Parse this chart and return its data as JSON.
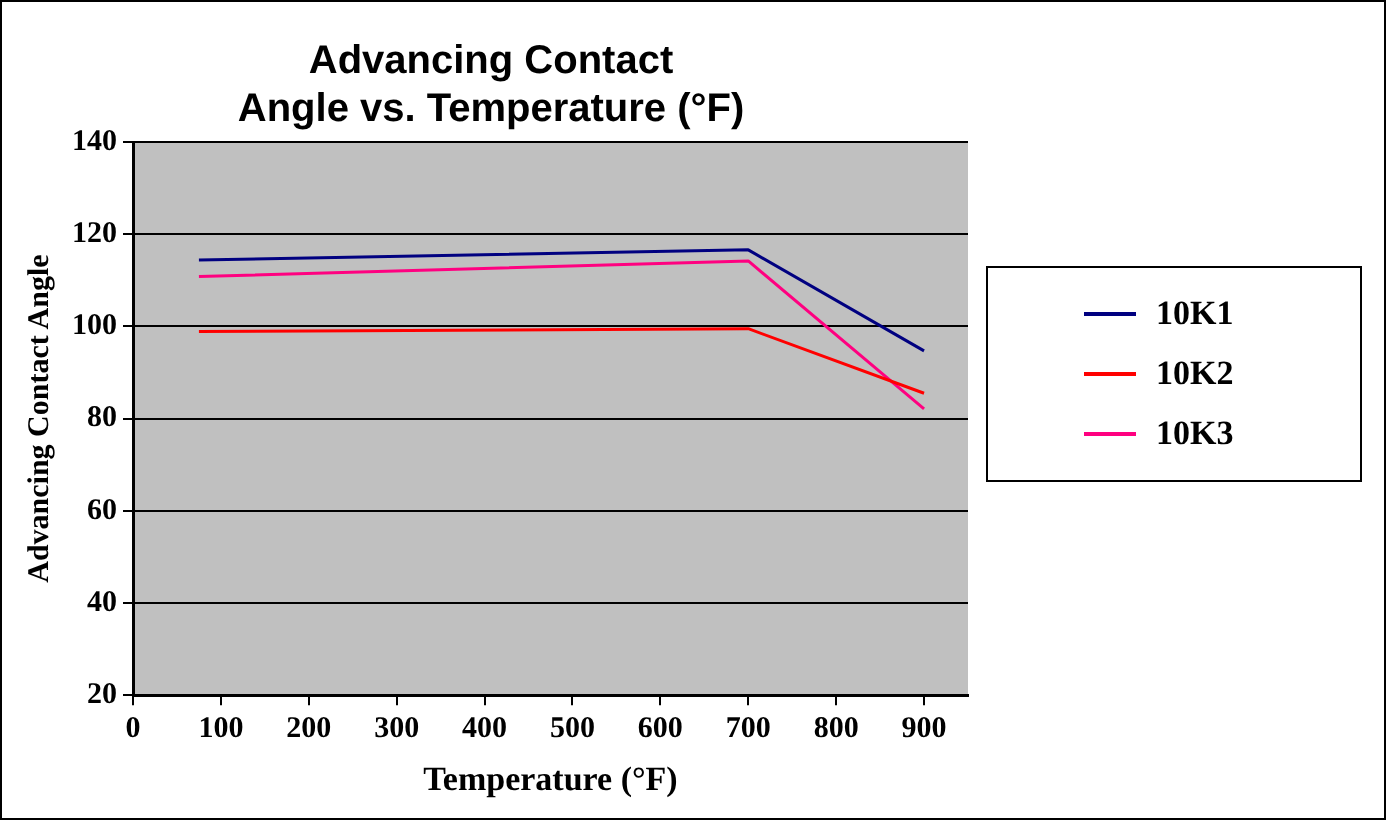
{
  "chart_data": {
    "type": "line",
    "title": "Advancing Contact\nAngle vs. Temperature (°F)",
    "xlabel": "Temperature (°F)",
    "ylabel": "Advancing Contact Angle",
    "x": [
      75,
      700,
      900
    ],
    "series": [
      {
        "name": "10K1",
        "color": "#000080",
        "values": [
          114.4,
          116.6,
          94.7
        ]
      },
      {
        "name": "10K2",
        "color": "#ff0000",
        "values": [
          98.9,
          99.5,
          85.5
        ]
      },
      {
        "name": "10K3",
        "color": "#ff0080",
        "values": [
          110.8,
          114.2,
          82.1
        ]
      }
    ],
    "xlim": [
      0,
      950
    ],
    "xticks": [
      0,
      100,
      200,
      300,
      400,
      500,
      600,
      700,
      800,
      900
    ],
    "ylim": [
      20,
      140
    ],
    "yticks": [
      20,
      40,
      60,
      80,
      100,
      120,
      140
    ],
    "grid": "y",
    "legend": "right",
    "marker": "none",
    "line_style": "solid"
  }
}
